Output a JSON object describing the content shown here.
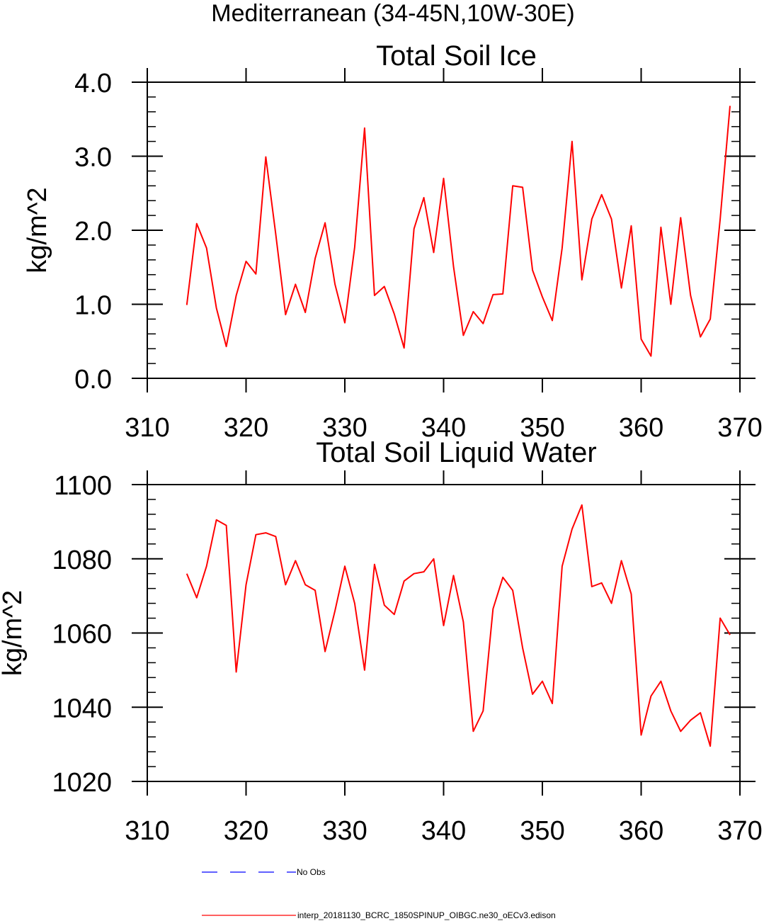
{
  "figure_title": "Mediterranean (34-45N,10W-30E)",
  "chart_data": [
    {
      "type": "line",
      "title": "Total Soil Ice",
      "xlabel": "",
      "ylabel": "kg/m^2",
      "xlim": [
        310,
        370
      ],
      "ylim": [
        0,
        4
      ],
      "xticks": [
        310,
        320,
        330,
        340,
        350,
        360,
        370
      ],
      "xtick_labels": [
        "310",
        "320",
        "330",
        "340",
        "350",
        "360",
        "370"
      ],
      "yticks": [
        0,
        1,
        2,
        3,
        4
      ],
      "ytick_labels": [
        "0.0",
        "1.0",
        "2.0",
        "3.0",
        "4.0"
      ],
      "x": [
        314,
        315,
        316,
        317,
        318,
        319,
        320,
        321,
        322,
        323,
        324,
        325,
        326,
        327,
        328,
        329,
        330,
        331,
        332,
        333,
        334,
        335,
        336,
        337,
        338,
        339,
        340,
        341,
        342,
        343,
        344,
        345,
        346,
        347,
        348,
        349,
        350,
        351,
        352,
        353,
        354,
        355,
        356,
        357,
        358,
        359,
        360,
        361,
        362,
        363,
        364,
        365,
        366,
        367,
        368,
        369
      ],
      "series": [
        {
          "name": "interp_20181130_BCRC_1850SPINUP_OIBGC.ne30_oECv3.edison",
          "color": "#ff0000",
          "values": [
            0.99,
            2.09,
            1.76,
            0.95,
            0.43,
            1.12,
            1.58,
            1.41,
            2.99,
            1.95,
            0.86,
            1.27,
            0.89,
            1.62,
            2.1,
            1.27,
            0.75,
            1.77,
            3.38,
            1.12,
            1.24,
            0.87,
            0.41,
            2.02,
            2.44,
            1.7,
            2.7,
            1.51,
            0.58,
            0.9,
            0.74,
            1.13,
            1.14,
            2.6,
            2.58,
            1.46,
            1.1,
            0.78,
            1.76,
            3.2,
            1.33,
            2.15,
            2.48,
            2.15,
            1.22,
            2.06,
            0.53,
            0.3,
            2.04,
            1.0,
            2.17,
            1.12,
            0.56,
            0.8,
            2.15,
            3.68
          ]
        }
      ]
    },
    {
      "type": "line",
      "title": "Total Soil Liquid Water",
      "xlabel": "",
      "ylabel": "kg/m^2",
      "xlim": [
        310,
        370
      ],
      "ylim": [
        1020,
        1100
      ],
      "xticks": [
        310,
        320,
        330,
        340,
        350,
        360,
        370
      ],
      "xtick_labels": [
        "310",
        "320",
        "330",
        "340",
        "350",
        "360",
        "370"
      ],
      "yticks": [
        1020,
        1040,
        1060,
        1080,
        1100
      ],
      "ytick_labels": [
        "1020",
        "1040",
        "1060",
        "1080",
        "1100"
      ],
      "x": [
        314,
        315,
        316,
        317,
        318,
        319,
        320,
        321,
        322,
        323,
        324,
        325,
        326,
        327,
        328,
        329,
        330,
        331,
        332,
        333,
        334,
        335,
        336,
        337,
        338,
        339,
        340,
        341,
        342,
        343,
        344,
        345,
        346,
        347,
        348,
        349,
        350,
        351,
        352,
        353,
        354,
        355,
        356,
        357,
        358,
        359,
        360,
        361,
        362,
        363,
        364,
        365,
        366,
        367,
        368,
        369
      ],
      "series": [
        {
          "name": "interp_20181130_BCRC_1850SPINUP_OIBGC.ne30_oECv3.edison",
          "color": "#ff0000",
          "values": [
            1076,
            1069.5,
            1078,
            1090.5,
            1089,
            1049.5,
            1073,
            1086.5,
            1087,
            1086,
            1073,
            1079.5,
            1073,
            1071.5,
            1055,
            1066,
            1078,
            1068,
            1050,
            1078.5,
            1067.5,
            1065,
            1074,
            1076,
            1076.5,
            1080,
            1062,
            1075.5,
            1063,
            1033.5,
            1039,
            1066.5,
            1075,
            1071.5,
            1056,
            1043.5,
            1047,
            1041,
            1078,
            1088,
            1094.5,
            1072.5,
            1073.5,
            1068,
            1079.5,
            1070.5,
            1032.5,
            1043,
            1047,
            1039,
            1033.5,
            1036.5,
            1038.5,
            1029.5,
            1064,
            1059.5
          ]
        }
      ]
    }
  ],
  "legend": {
    "items": [
      {
        "label": "No Obs",
        "color": "#0000ff",
        "style": "dashed"
      },
      {
        "label": "interp_20181130_BCRC_1850SPINUP_OIBGC.ne30_oECv3.edison",
        "color": "#ff0000",
        "style": "solid"
      }
    ]
  }
}
